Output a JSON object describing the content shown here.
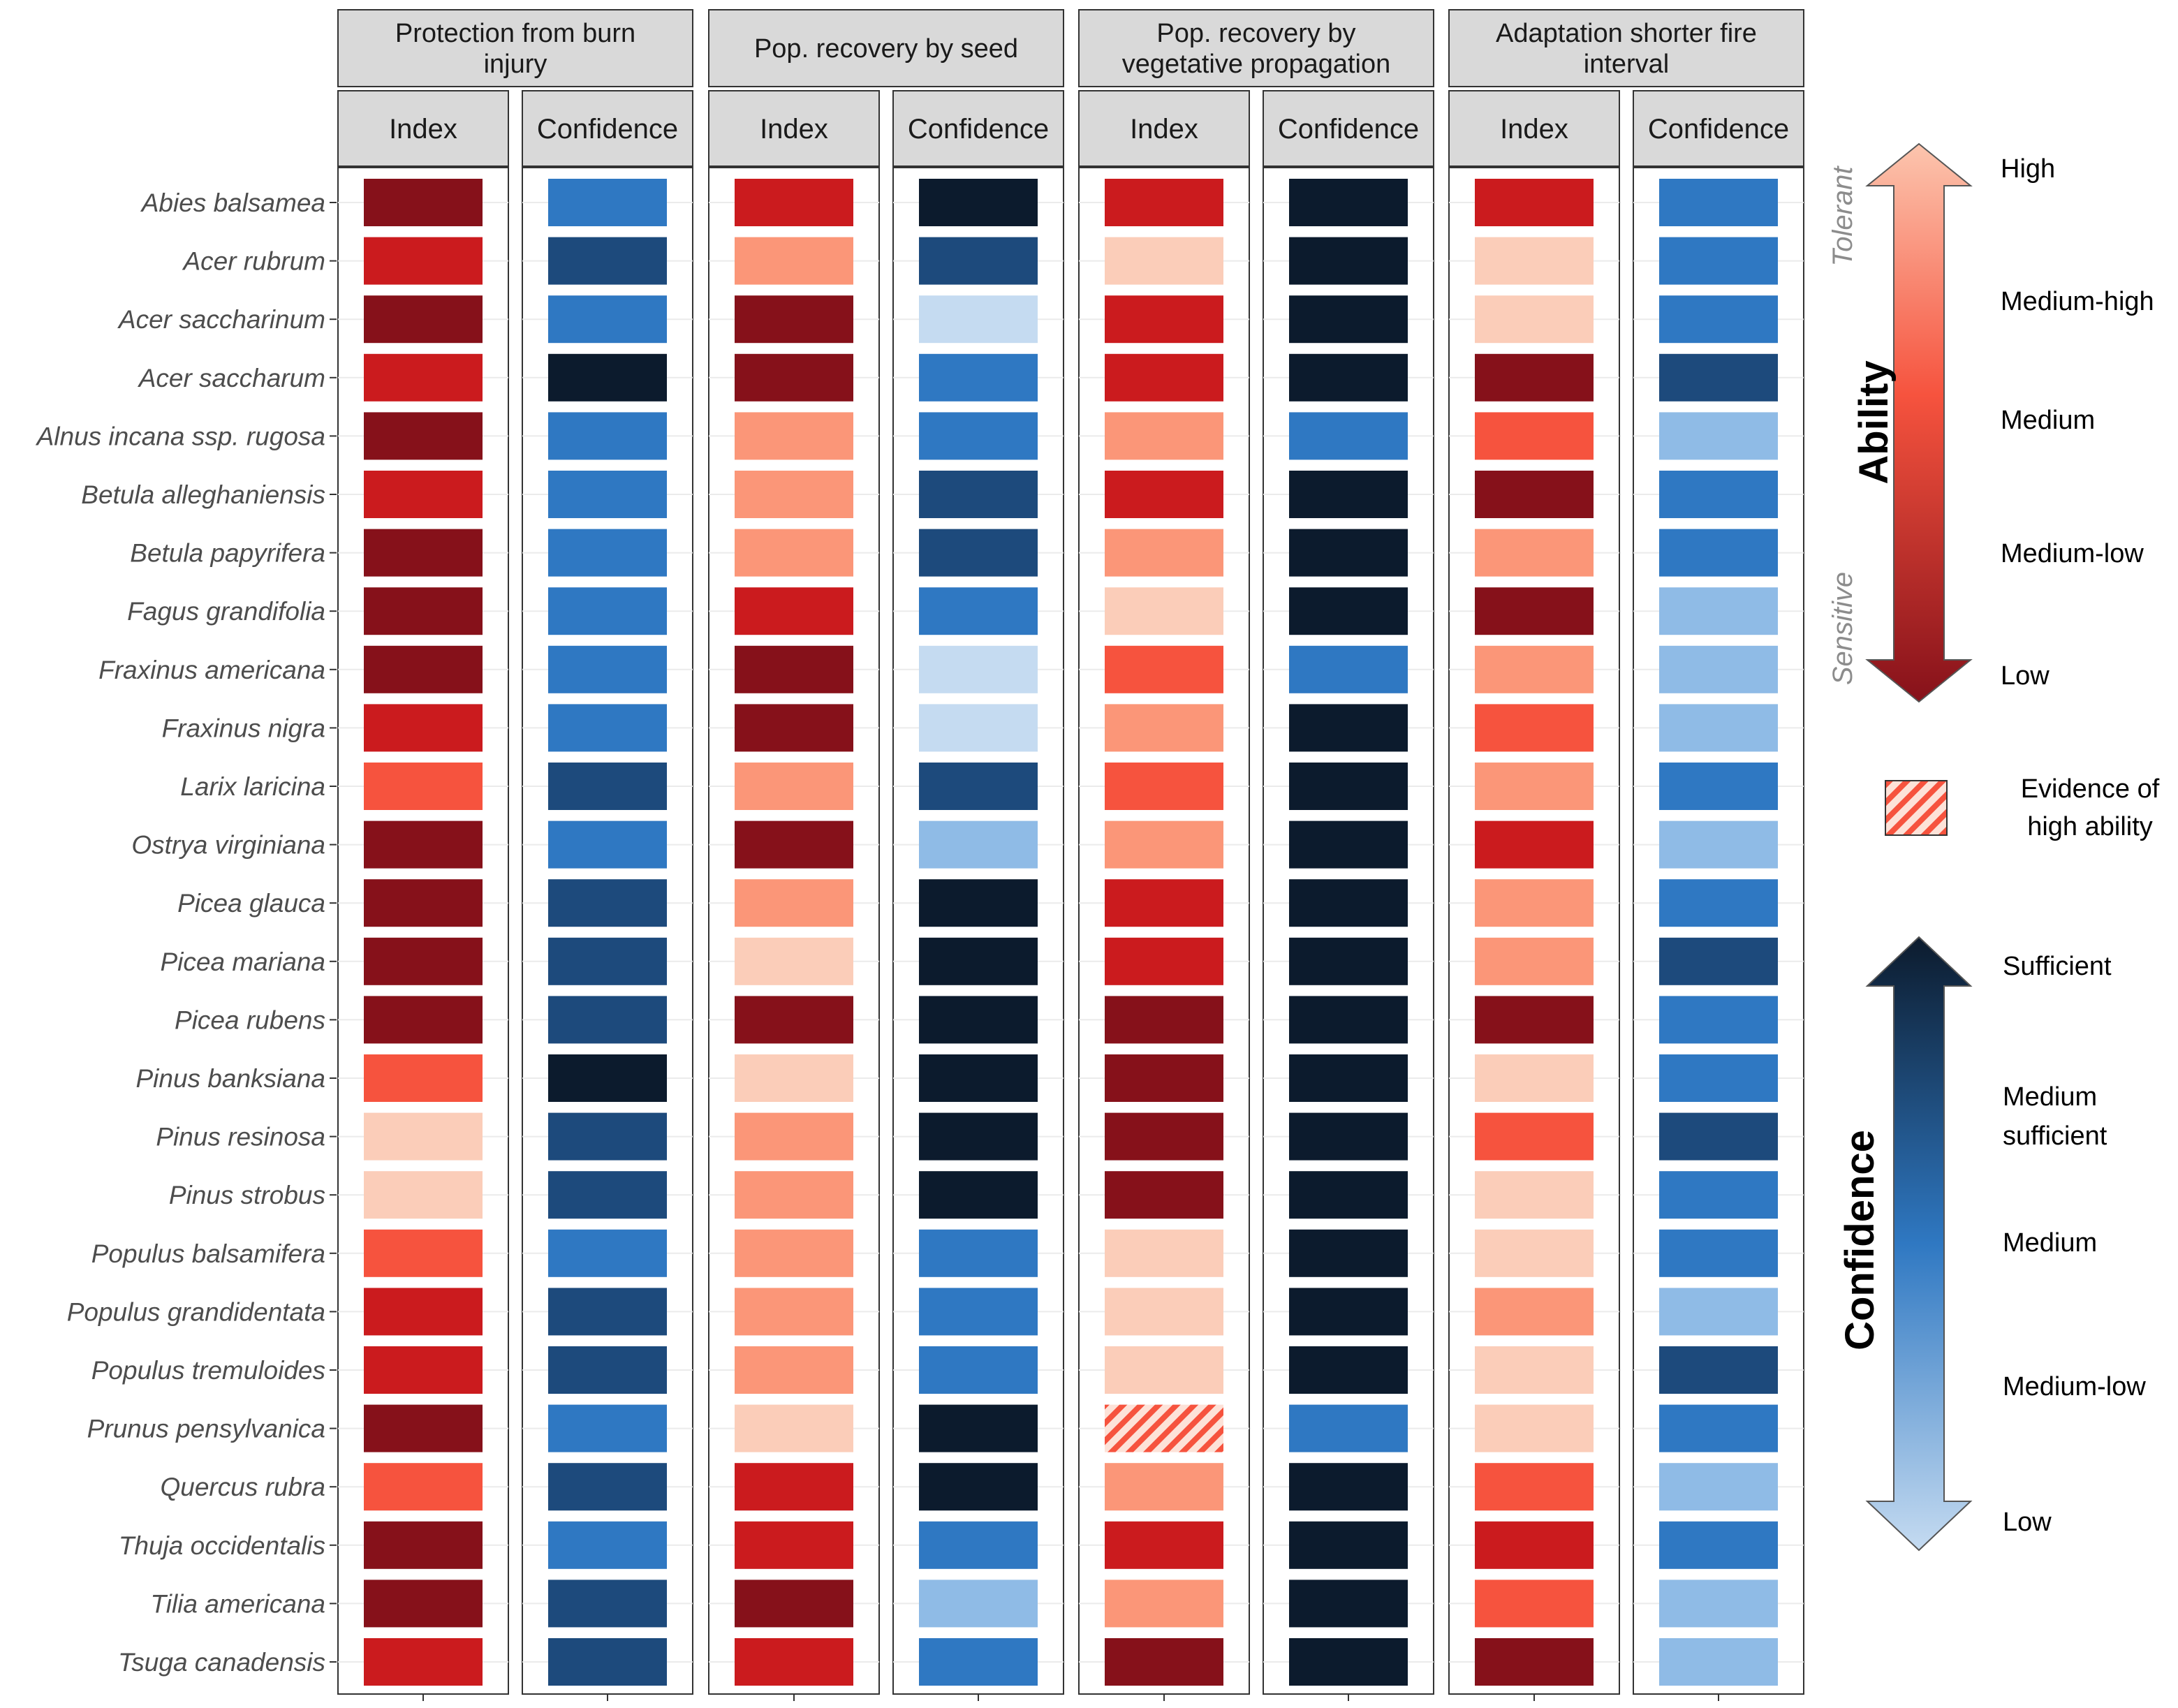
{
  "chart_data": {
    "type": "heatmap",
    "panels": [
      {
        "title": "Protection from burn injury",
        "title_lines": [
          "Protection from burn",
          "injury"
        ]
      },
      {
        "title": "Pop. recovery by seed",
        "title_lines": [
          "Pop. recovery by seed"
        ]
      },
      {
        "title": "Pop. recovery by vegetative propagation",
        "title_lines": [
          "Pop. recovery by",
          "vegetative propagation"
        ]
      },
      {
        "title": "Adaptation shorter fire interval",
        "title_lines": [
          "Adaptation shorter fire",
          "interval"
        ]
      }
    ],
    "subcolumns": [
      "Index",
      "Confidence"
    ],
    "species": [
      "Abies balsamea",
      "Acer rubrum",
      "Acer saccharinum",
      "Acer saccharum",
      "Alnus incana ssp. rugosa",
      "Betula alleghaniensis",
      "Betula papyrifera",
      "Fagus grandifolia",
      "Fraxinus americana",
      "Fraxinus nigra",
      "Larix laricina",
      "Ostrya virginiana",
      "Picea glauca",
      "Picea mariana",
      "Picea rubens",
      "Pinus banksiana",
      "Pinus resinosa",
      "Pinus strobus",
      "Populus balsamifera",
      "Populus grandidentata",
      "Populus tremuloides",
      "Prunus pensylvanica",
      "Quercus rubra",
      "Thuja occidentalis",
      "Tilia americana",
      "Tsuga canadensis"
    ],
    "ability_levels": [
      "Low",
      "Medium-low",
      "Medium",
      "Medium-high",
      "High"
    ],
    "confidence_levels": [
      "Low",
      "Medium-low",
      "Medium",
      "Medium sufficient",
      "Sufficient"
    ],
    "index": [
      [
        1,
        2,
        2,
        2
      ],
      [
        2,
        4,
        5,
        5
      ],
      [
        1,
        1,
        2,
        5
      ],
      [
        2,
        1,
        2,
        1
      ],
      [
        1,
        4,
        4,
        3
      ],
      [
        2,
        4,
        2,
        1
      ],
      [
        1,
        4,
        4,
        4
      ],
      [
        1,
        2,
        5,
        1
      ],
      [
        1,
        1,
        3,
        4
      ],
      [
        2,
        1,
        4,
        3
      ],
      [
        3,
        4,
        3,
        4
      ],
      [
        1,
        1,
        4,
        2
      ],
      [
        1,
        4,
        2,
        4
      ],
      [
        1,
        5,
        2,
        4
      ],
      [
        1,
        1,
        1,
        1
      ],
      [
        3,
        5,
        1,
        5
      ],
      [
        5,
        4,
        1,
        3
      ],
      [
        5,
        4,
        1,
        5
      ],
      [
        3,
        4,
        5,
        5
      ],
      [
        2,
        4,
        5,
        4
      ],
      [
        2,
        4,
        5,
        5
      ],
      [
        1,
        5,
        "H",
        5
      ],
      [
        3,
        2,
        4,
        3
      ],
      [
        1,
        2,
        2,
        2
      ],
      [
        1,
        1,
        4,
        3
      ],
      [
        2,
        2,
        1,
        1
      ]
    ],
    "confidence": [
      [
        3,
        5,
        5,
        3
      ],
      [
        4,
        4,
        5,
        3
      ],
      [
        3,
        1,
        5,
        3
      ],
      [
        5,
        3,
        5,
        4
      ],
      [
        3,
        3,
        3,
        2
      ],
      [
        3,
        4,
        5,
        3
      ],
      [
        3,
        4,
        5,
        3
      ],
      [
        3,
        3,
        5,
        2
      ],
      [
        3,
        1,
        3,
        2
      ],
      [
        3,
        1,
        5,
        2
      ],
      [
        4,
        4,
        5,
        3
      ],
      [
        3,
        2,
        5,
        2
      ],
      [
        4,
        5,
        5,
        3
      ],
      [
        4,
        5,
        5,
        4
      ],
      [
        4,
        5,
        5,
        3
      ],
      [
        5,
        5,
        5,
        3
      ],
      [
        4,
        5,
        5,
        4
      ],
      [
        4,
        5,
        5,
        3
      ],
      [
        3,
        3,
        5,
        3
      ],
      [
        4,
        3,
        5,
        2
      ],
      [
        4,
        3,
        5,
        4
      ],
      [
        3,
        5,
        3,
        3
      ],
      [
        4,
        5,
        5,
        2
      ],
      [
        3,
        3,
        5,
        3
      ],
      [
        4,
        2,
        5,
        2
      ],
      [
        4,
        3,
        5,
        2
      ]
    ],
    "ability_colors": [
      "#86111a",
      "#cb1b1e",
      "#f6533e",
      "#fb9678",
      "#fbcdb9"
    ],
    "confidence_colors": [
      "#c5dbf1",
      "#8fbbe6",
      "#2f78c2",
      "#1d4a7c",
      "#0c1b2d"
    ],
    "hatch_color": "#f6533e",
    "legend": {
      "ability_title": "Ability",
      "tolerant_label": "Tolerant",
      "sensitive_label": "Sensitive",
      "ability_labels_top_to_bottom": [
        "High",
        "Medium-high",
        "Medium",
        "Medium-low",
        "Low"
      ],
      "evidence_label_lines": [
        "Evidence of",
        "high ability"
      ],
      "confidence_title": "Confidence",
      "confidence_labels_top_to_bottom": [
        {
          "lines": [
            "Sufficient"
          ]
        },
        {
          "lines": [
            "Medium",
            "sufficient"
          ]
        },
        {
          "lines": [
            "Medium"
          ]
        },
        {
          "lines": [
            "Medium-low"
          ]
        },
        {
          "lines": [
            "Low"
          ]
        }
      ]
    }
  }
}
